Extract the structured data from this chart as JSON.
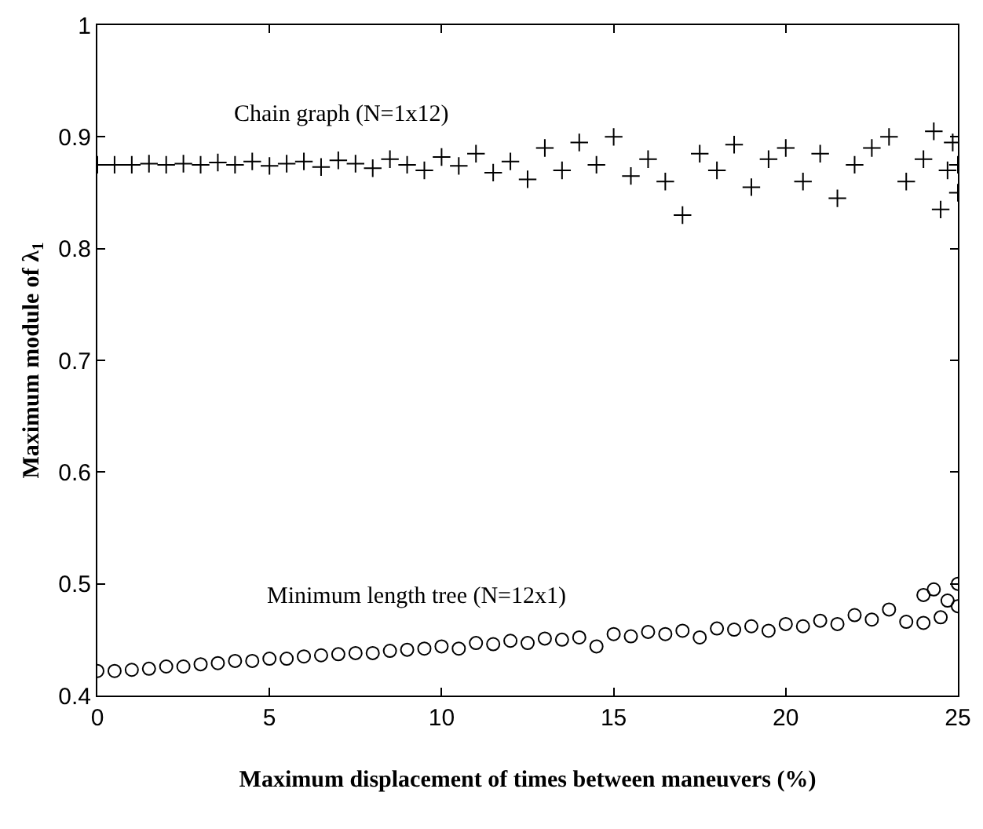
{
  "chart_data": {
    "type": "scatter",
    "xlabel": "Maximum displacement of times between maneuvers (%)",
    "ylabel": "Maximum module of λ$_{1}$",
    "xlim": [
      0,
      25
    ],
    "xticks": [
      0,
      5,
      10,
      15,
      20,
      25
    ],
    "ylim": [
      0.4,
      1
    ],
    "yticks": [
      0.4,
      0.5,
      0.6,
      0.7,
      0.8,
      0.9,
      1
    ],
    "legend": false,
    "annotations": [
      "Chain graph (N=1x12)",
      "Minimum length tree (N=12x1)"
    ],
    "series": [
      {
        "color": "#000000",
        "marker": "cross",
        "x": [
          0,
          0.5,
          1,
          1.5,
          2,
          2.5,
          3,
          3.5,
          4,
          4.5,
          5,
          5.5,
          6,
          6.5,
          7,
          7.5,
          8,
          8.5,
          9,
          9.5,
          10,
          10.5,
          11,
          11.5,
          12,
          12.5,
          13,
          13.5,
          14,
          14.5,
          15,
          15.5,
          16,
          16.5,
          17,
          17.5,
          18,
          18.5,
          19,
          19.5,
          20,
          20.5,
          21,
          21.5,
          22,
          22.5,
          23,
          23.5,
          24,
          24.3,
          24.5,
          24.7,
          25,
          24.85,
          25
        ],
        "values": [
          0.875,
          0.875,
          0.875,
          0.876,
          0.875,
          0.876,
          0.875,
          0.877,
          0.875,
          0.878,
          0.874,
          0.876,
          0.878,
          0.873,
          0.879,
          0.876,
          0.872,
          0.88,
          0.875,
          0.87,
          0.882,
          0.874,
          0.885,
          0.868,
          0.878,
          0.862,
          0.89,
          0.87,
          0.895,
          0.875,
          0.9,
          0.865,
          0.88,
          0.86,
          0.83,
          0.885,
          0.87,
          0.893,
          0.855,
          0.88,
          0.89,
          0.86,
          0.885,
          0.845,
          0.875,
          0.89,
          0.9,
          0.86,
          0.88,
          0.905,
          0.835,
          0.87,
          0.875,
          0.895,
          0.85
        ]
      },
      {
        "color": "#000000",
        "marker": "circle",
        "x": [
          0,
          0.5,
          1,
          1.5,
          2,
          2.5,
          3,
          3.5,
          4,
          4.5,
          5,
          5.5,
          6,
          6.5,
          7,
          7.5,
          8,
          8.5,
          9,
          9.5,
          10,
          10.5,
          11,
          11.5,
          12,
          12.5,
          13,
          13.5,
          14,
          14.5,
          15,
          15.5,
          16,
          16.5,
          17,
          17.5,
          18,
          18.5,
          19,
          19.5,
          20,
          20.5,
          21,
          21.5,
          22,
          22.5,
          23,
          23.5,
          24,
          24,
          24.3,
          24.5,
          24.7,
          25,
          25
        ],
        "values": [
          0.422,
          0.422,
          0.423,
          0.424,
          0.426,
          0.426,
          0.428,
          0.429,
          0.431,
          0.431,
          0.433,
          0.433,
          0.435,
          0.436,
          0.437,
          0.438,
          0.438,
          0.44,
          0.441,
          0.442,
          0.444,
          0.442,
          0.447,
          0.446,
          0.449,
          0.447,
          0.451,
          0.45,
          0.452,
          0.444,
          0.455,
          0.453,
          0.457,
          0.455,
          0.458,
          0.452,
          0.46,
          0.459,
          0.462,
          0.458,
          0.464,
          0.462,
          0.467,
          0.464,
          0.472,
          0.468,
          0.477,
          0.466,
          0.49,
          0.465,
          0.495,
          0.47,
          0.485,
          0.5,
          0.48
        ]
      }
    ]
  }
}
